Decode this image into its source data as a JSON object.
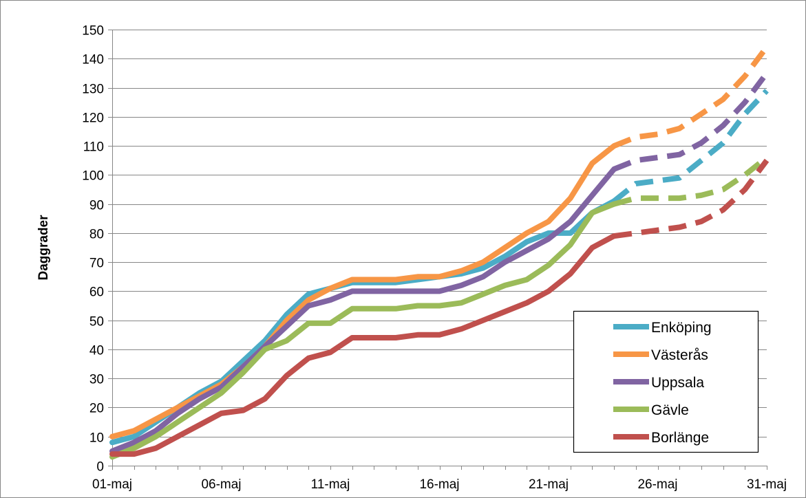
{
  "chart_data": {
    "type": "line",
    "title": "",
    "xlabel": "",
    "ylabel": "Daggrader",
    "ylim": [
      0,
      150
    ],
    "yticks": [
      0,
      10,
      20,
      30,
      40,
      50,
      60,
      70,
      80,
      90,
      100,
      110,
      120,
      130,
      140,
      150
    ],
    "xticks": [
      1,
      6,
      11,
      16,
      21,
      26,
      31
    ],
    "xtick_labels": [
      "01-maj",
      "06-maj",
      "11-maj",
      "16-maj",
      "21-maj",
      "26-maj",
      "31-maj"
    ],
    "grid": "horizontal",
    "legend_position": "bottom-right",
    "x": [
      1,
      2,
      3,
      4,
      5,
      6,
      7,
      8,
      9,
      10,
      11,
      12,
      13,
      14,
      15,
      16,
      17,
      18,
      19,
      20,
      21,
      22,
      23,
      24,
      25,
      26,
      27,
      28,
      29,
      30,
      31
    ],
    "observed_through": 24,
    "series": [
      {
        "name": "Enköping",
        "color": "#4bacc6",
        "values": [
          8,
          10,
          15,
          20,
          25,
          29,
          36,
          43,
          52,
          59,
          61,
          63,
          63,
          63,
          64,
          65,
          66,
          68,
          72,
          77,
          80,
          80,
          87,
          91,
          97,
          98,
          99,
          105,
          111,
          121,
          129
        ]
      },
      {
        "name": "Västerås",
        "color": "#f79646",
        "values": [
          10,
          12,
          16,
          20,
          24,
          28,
          34,
          41,
          50,
          57,
          61,
          64,
          64,
          64,
          65,
          65,
          67,
          70,
          75,
          80,
          84,
          92,
          104,
          110,
          113,
          114,
          116,
          121,
          126,
          134,
          144
        ]
      },
      {
        "name": "Uppsala",
        "color": "#8064a2",
        "values": [
          5,
          8,
          12,
          18,
          23,
          27,
          34,
          41,
          48,
          55,
          57,
          60,
          60,
          60,
          60,
          60,
          62,
          65,
          70,
          74,
          78,
          84,
          93,
          102,
          105,
          106,
          107,
          111,
          117,
          125,
          135
        ]
      },
      {
        "name": "Gävle",
        "color": "#9bbb59",
        "values": [
          3,
          6,
          10,
          15,
          20,
          25,
          32,
          40,
          43,
          49,
          49,
          54,
          54,
          54,
          55,
          55,
          56,
          59,
          62,
          64,
          69,
          76,
          87,
          90,
          92,
          92,
          92,
          93,
          95,
          100,
          106
        ]
      },
      {
        "name": "Borlänge",
        "color": "#c0504d",
        "values": [
          4,
          4,
          6,
          10,
          14,
          18,
          19,
          23,
          31,
          37,
          39,
          44,
          44,
          44,
          45,
          45,
          47,
          50,
          53,
          56,
          60,
          66,
          75,
          79,
          80,
          81,
          82,
          84,
          88,
          95,
          105
        ]
      }
    ]
  }
}
